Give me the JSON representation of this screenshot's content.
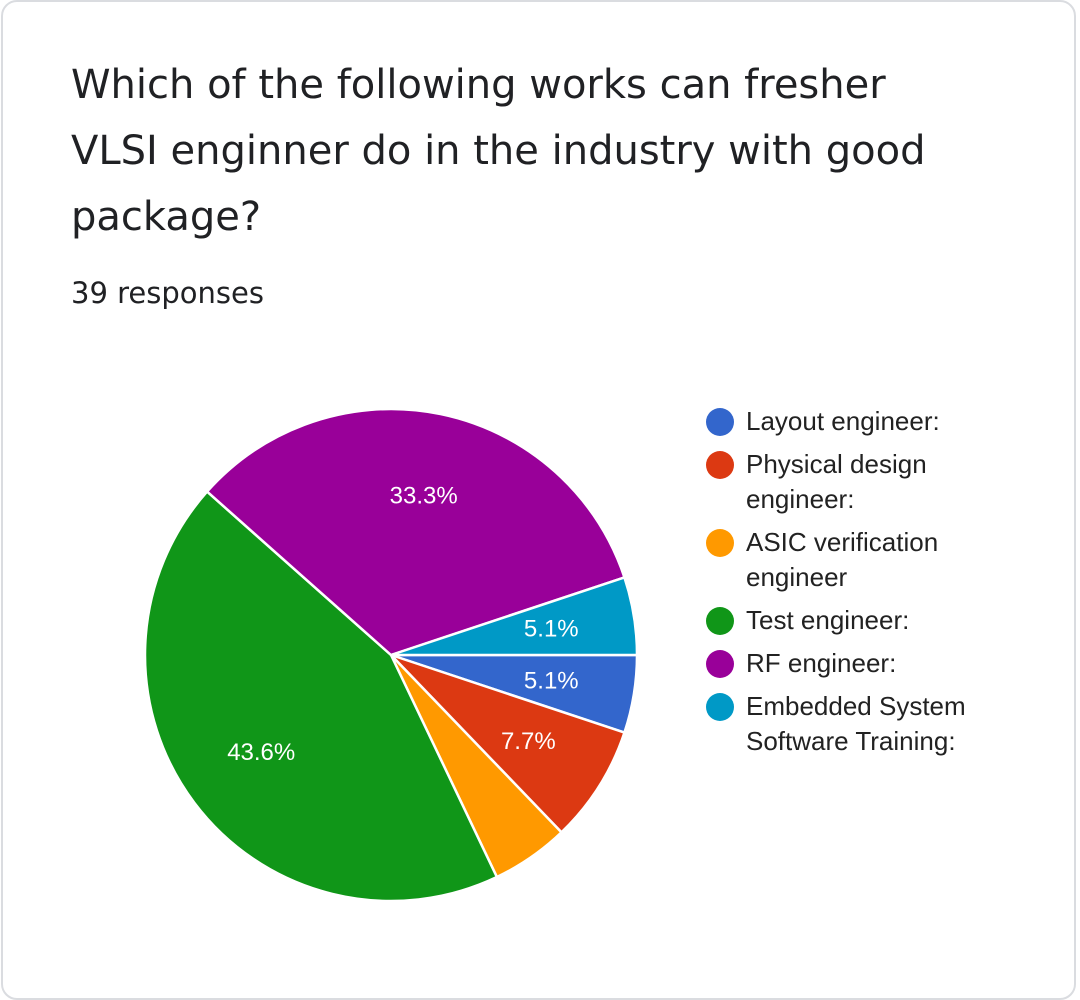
{
  "card": {
    "title": "Which of the following works can fresher VLSI enginner do in the industry with good package?",
    "responses": "39 responses"
  },
  "chart_data": {
    "type": "pie",
    "title": "Which of the following works can fresher VLSI enginner do in the industry with good package?",
    "subtitle": "39 responses",
    "legend_position": "right",
    "start_angle_deg": 90,
    "direction": "clockwise",
    "slices": [
      {
        "label": "Layout engineer:",
        "value": 5.1,
        "color": "#3366cc",
        "data_label": "5.1%"
      },
      {
        "label": "Physical design engineer:",
        "value": 7.7,
        "color": "#dc3912",
        "data_label": "7.7%"
      },
      {
        "label": "ASIC verification engineer",
        "value": 5.1,
        "color": "#ff9900",
        "data_label": ""
      },
      {
        "label": "Test engineer:",
        "value": 43.6,
        "color": "#109618",
        "data_label": "43.6%"
      },
      {
        "label": "RF engineer:",
        "value": 33.3,
        "color": "#990099",
        "data_label": "33.3%"
      },
      {
        "label": "Embedded System Software Training:",
        "value": 5.1,
        "color": "#0099c6",
        "data_label": "5.1%"
      }
    ]
  }
}
